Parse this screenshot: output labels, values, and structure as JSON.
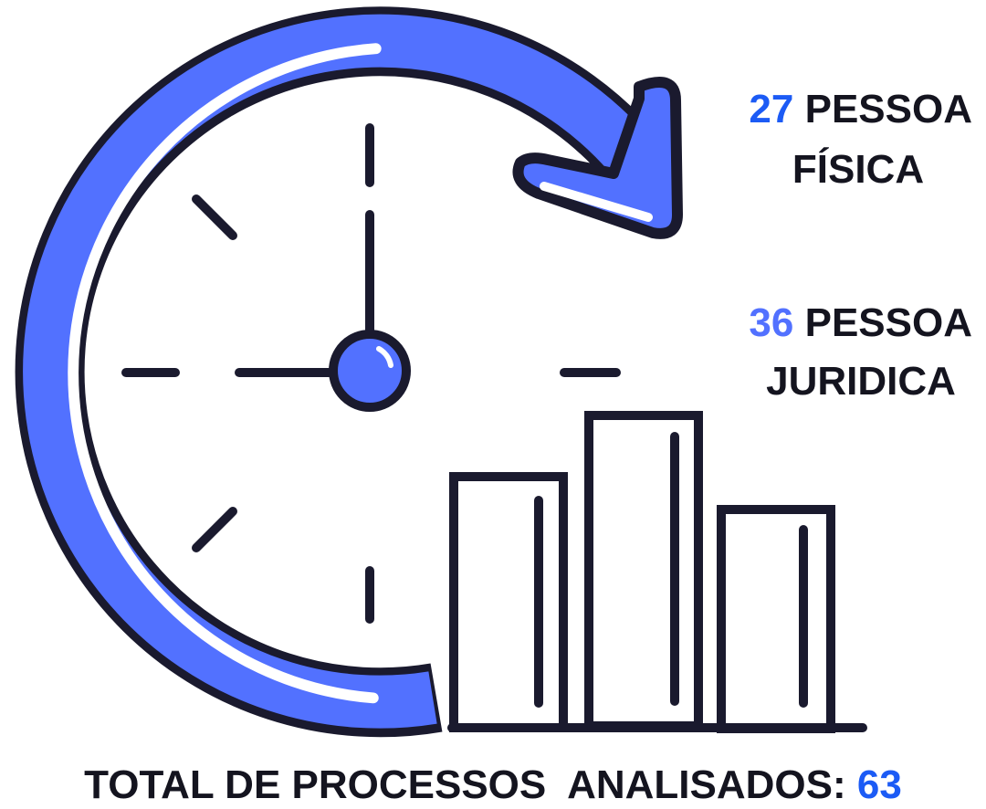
{
  "items": [
    {
      "number": "27",
      "line1": "PESSOA",
      "line2": "FÍSICA"
    },
    {
      "number": "36",
      "line1": "PESSOA",
      "line2": "JURIDICA"
    }
  ],
  "total": {
    "label": "TOTAL DE PROCESSOS  ANALISADOS:",
    "value": "63"
  }
}
